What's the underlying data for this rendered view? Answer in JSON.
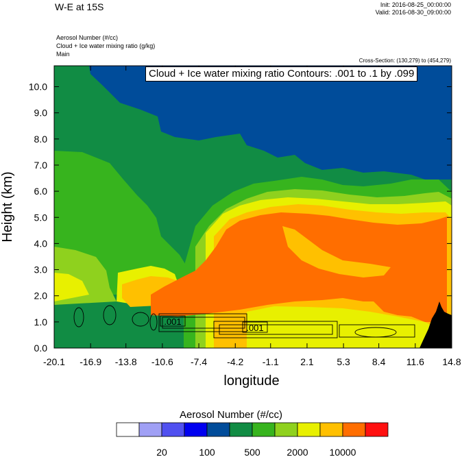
{
  "header": {
    "title": "W-E at 15S",
    "init": "Init: 2016-08-25_00:00:00",
    "valid": "Valid: 2016-08-30_09:00:00",
    "field1": "Aerosol Number   (#/cc)",
    "field2": "Cloud + Ice water mixing ratio   (g/kg)",
    "field3": "Main",
    "cross_section": "Cross-Section: (130,279) to (454,279)",
    "contour_note": "Cloud + Ice water mixing ratio Contours: .001 to .1 by .099"
  },
  "chart_data": {
    "type": "heatmap",
    "xlabel": "longitude",
    "ylabel": "Height (km)",
    "xlim": [
      -20.1,
      14.8
    ],
    "ylim": [
      0.0,
      10.8
    ],
    "xticks": [
      "-20.1",
      "-16.9",
      "-13.8",
      "-10.6",
      "-7.4",
      "-4.2",
      "-1.1",
      "2.1",
      "5.3",
      "8.4",
      "11.6",
      "14.8"
    ],
    "yticks": [
      "0.0",
      "1.0",
      "2.0",
      "3.0",
      "4.0",
      "5.0",
      "6.0",
      "7.0",
      "8.0",
      "9.0",
      "10.0"
    ],
    "contour_labels": [
      ".001",
      ".001"
    ],
    "colorbar": {
      "title": "Aerosol Number  (#/cc)",
      "colors": [
        "#ffffff",
        "#a0a0f5",
        "#5050f0",
        "#0000f0",
        "#004c9a",
        "#118c44",
        "#37b41e",
        "#8fd11e",
        "#e8f000",
        "#ffc000",
        "#ff6e00",
        "#ff1010"
      ],
      "labels": [
        "20",
        "100",
        "500",
        "2000",
        "10000"
      ]
    },
    "field_colors": {
      "darkgreen": "#118c44",
      "blue": "#004c9a",
      "green": "#37b41e",
      "lightgreen": "#8fd11e",
      "yellow": "#e8f000",
      "orange_light": "#ffc000",
      "orange": "#ff6e00",
      "terrain": "#000000"
    }
  }
}
